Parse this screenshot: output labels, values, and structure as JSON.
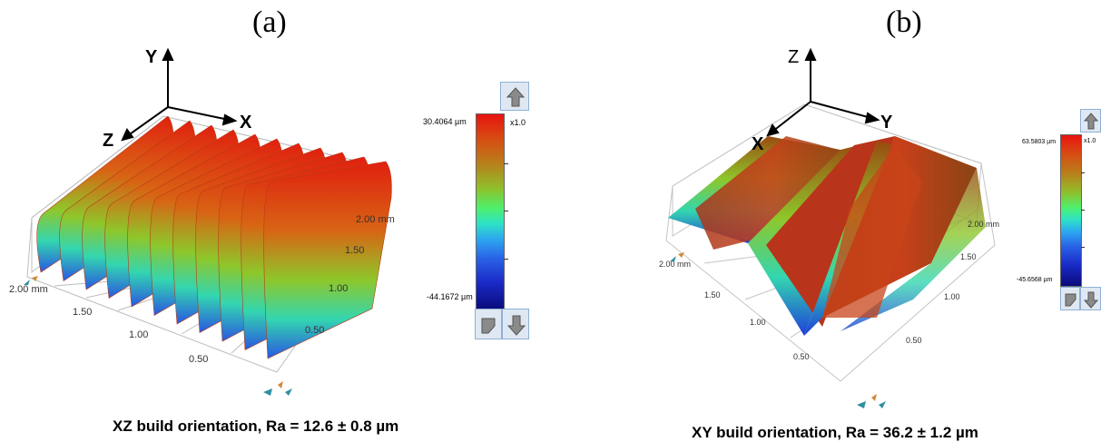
{
  "panel_a": {
    "label": "(a)",
    "axes": {
      "up": "Y",
      "right": "X",
      "depth": "Z"
    },
    "ticks_left": [
      "2.00 mm",
      "1.50",
      "1.00",
      "0.50"
    ],
    "ticks_right": [
      "2.00 mm",
      "1.50",
      "1.00",
      "0.50"
    ],
    "scale_max": "30.4064  µm",
    "scale_min": "-44.1672  µm",
    "zoom": "x1.0",
    "caption": "XZ build orientation, Ra = 12.6 ± 0.8 µm"
  },
  "panel_b": {
    "label": "(b)",
    "axes": {
      "up": "Z",
      "right": "Y",
      "depth": "X"
    },
    "ticks_left": [
      "2.00 mm",
      "1.50",
      "1.00",
      "0.50"
    ],
    "ticks_right": [
      "2.00 mm",
      "1.50",
      "1.00",
      "0.50"
    ],
    "scale_max": "63.5803 µm",
    "scale_min": "-45.6568 µm",
    "zoom": "x1.0",
    "caption": "XY build orientation, Ra = 36.2 ± 1.2 µm"
  }
}
